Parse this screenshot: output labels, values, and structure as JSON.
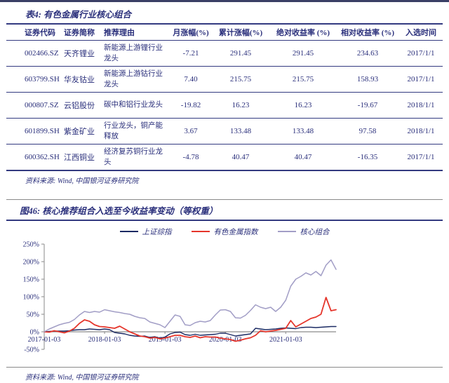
{
  "page": {
    "colors": {
      "navy_text": "#2A2F7B",
      "rule_navy": "#333a80",
      "rule_gray": "#8a8a8a"
    }
  },
  "table_section": {
    "title": "表4: 有色金属行业核心组合",
    "columns": [
      "证券代码",
      "证券简称",
      "推荐理由",
      "月涨幅(%)",
      "累计涨幅(%)",
      "绝对收益率 (%)",
      "相对收益率 (%)",
      "入选时间"
    ],
    "rows": [
      {
        "code": "002466.SZ",
        "name": "天齐锂业",
        "reason": "新能源上游锂行业龙头",
        "monthly": "-7.21",
        "cumulative": "291.45",
        "absolute": "291.45",
        "relative": "234.63",
        "date": "2017/1/1"
      },
      {
        "code": "603799.SH",
        "name": "华友钴业",
        "reason": "新能源上游钴行业龙头",
        "monthly": "7.40",
        "cumulative": "215.75",
        "absolute": "215.75",
        "relative": "158.93",
        "date": "2017/1/1"
      },
      {
        "code": "000807.SZ",
        "name": "云铝股份",
        "reason": "碳中和铝行业龙头",
        "monthly": "-19.82",
        "cumulative": "16.23",
        "absolute": "16.23",
        "relative": "-19.67",
        "date": "2018/1/1"
      },
      {
        "code": "601899.SH",
        "name": "紫金矿业",
        "reason": "行业龙头，铜产能释放",
        "monthly": "3.67",
        "cumulative": "133.48",
        "absolute": "133.48",
        "relative": "97.58",
        "date": "2018/1/1"
      },
      {
        "code": "600362.SH",
        "name": "江西铜业",
        "reason": "经济复苏铜行业龙头",
        "monthly": "-4.78",
        "cumulative": "40.47",
        "absolute": "40.47",
        "relative": "-16.35",
        "date": "2017/1/1"
      }
    ],
    "source": "资料来源: Wind, 中国银河证券研究院"
  },
  "figure_section": {
    "title": "图46: 核心推荐组合入选至今收益率变动（等权重）",
    "source": "资料来源: Wind, 中国银河证券研究院"
  },
  "chart_data": {
    "type": "line",
    "title": "核心推荐组合入选至今收益率变动（等权重）",
    "ylim": [
      -50,
      250
    ],
    "ytick_step": 50,
    "ytick_labels": [
      "250%",
      "200%",
      "150%",
      "100%",
      "50%",
      "0%",
      "-50%"
    ],
    "grid": false,
    "legend_position": "top-center",
    "x": [
      "2017-01",
      "2017-02",
      "2017-03",
      "2017-04",
      "2017-05",
      "2017-06",
      "2017-07",
      "2017-08",
      "2017-09",
      "2017-10",
      "2017-11",
      "2017-12",
      "2018-01",
      "2018-02",
      "2018-03",
      "2018-04",
      "2018-05",
      "2018-06",
      "2018-07",
      "2018-08",
      "2018-09",
      "2018-10",
      "2018-11",
      "2018-12",
      "2019-01",
      "2019-02",
      "2019-03",
      "2019-04",
      "2019-05",
      "2019-06",
      "2019-07",
      "2019-08",
      "2019-09",
      "2019-10",
      "2019-11",
      "2019-12",
      "2020-01",
      "2020-02",
      "2020-03",
      "2020-04",
      "2020-05",
      "2020-06",
      "2020-07",
      "2020-08",
      "2020-09",
      "2020-10",
      "2020-11",
      "2020-12",
      "2021-01",
      "2021-02",
      "2021-03",
      "2021-04",
      "2021-05",
      "2021-06",
      "2021-07",
      "2021-08",
      "2021-09",
      "2021-10",
      "2021-11"
    ],
    "xticks": [
      {
        "index": 0,
        "label": "2017-01-03"
      },
      {
        "index": 12,
        "label": "2018-01-03"
      },
      {
        "index": 24,
        "label": "2019-01-03"
      },
      {
        "index": 36,
        "label": "2020-01-03"
      },
      {
        "index": 48,
        "label": "2021-01-03"
      }
    ],
    "series": [
      {
        "name": "上证综指",
        "color": "#1B2A63",
        "width": 1.4,
        "values": [
          0,
          1,
          2,
          2,
          2,
          3,
          5,
          6,
          6,
          8,
          7,
          6,
          8,
          6,
          -2,
          -4,
          -6,
          -10,
          -12,
          -13,
          -12,
          -16,
          -14,
          -18,
          -15,
          -6,
          -2,
          -1,
          -8,
          -10,
          -7,
          -10,
          -9,
          -8,
          -7,
          -4,
          -4,
          -8,
          -12,
          -10,
          -8,
          -6,
          10,
          8,
          6,
          7,
          8,
          10,
          11,
          10,
          9,
          12,
          13,
          13,
          12,
          13,
          14,
          15,
          15
        ]
      },
      {
        "name": "有色金属指数",
        "color": "#E5352B",
        "width": 1.8,
        "values": [
          0,
          -1,
          3,
          0,
          -3,
          2,
          10,
          24,
          34,
          30,
          20,
          15,
          14,
          12,
          10,
          16,
          8,
          0,
          -6,
          -12,
          -14,
          -18,
          -16,
          -20,
          -18,
          -14,
          -10,
          -10,
          -14,
          -16,
          -12,
          -17,
          -14,
          -15,
          -15,
          -18,
          -20,
          -22,
          -27,
          -24,
          -20,
          -17,
          -10,
          3,
          0,
          2,
          4,
          7,
          10,
          32,
          14,
          22,
          30,
          38,
          42,
          50,
          98,
          60,
          63
        ]
      },
      {
        "name": "核心组合",
        "color": "#A29EC6",
        "width": 1.5,
        "values": [
          0,
          8,
          14,
          20,
          24,
          27,
          35,
          48,
          58,
          55,
          58,
          56,
          63,
          60,
          57,
          55,
          52,
          50,
          44,
          40,
          38,
          28,
          24,
          20,
          12,
          30,
          48,
          44,
          20,
          18,
          26,
          30,
          28,
          32,
          48,
          62,
          63,
          58,
          40,
          39,
          47,
          61,
          77,
          70,
          66,
          70,
          58,
          70,
          90,
          130,
          150,
          158,
          168,
          162,
          172,
          160,
          190,
          205,
          178
        ]
      }
    ]
  }
}
